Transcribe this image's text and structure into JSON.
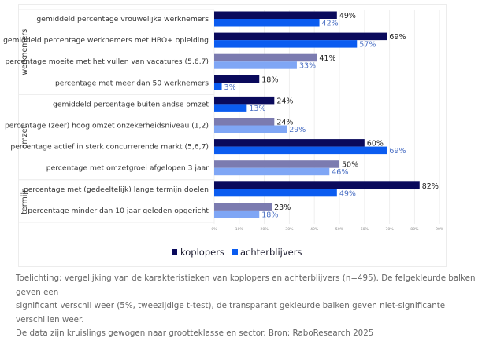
{
  "chart_data": {
    "type": "bar",
    "orientation": "horizontal",
    "title": "",
    "xlabel": "",
    "ylabel": "",
    "xlim": [
      0,
      90
    ],
    "x_ticks": [
      "0%",
      "10%",
      "20%",
      "30%",
      "40%",
      "50%",
      "60%",
      "70%",
      "80%",
      "90%"
    ],
    "grid": true,
    "legend_position": "bottom-center",
    "groups": [
      {
        "name": "werknemers",
        "categories": [
          0,
          1,
          2,
          3
        ]
      },
      {
        "name": "omzet",
        "categories": [
          4,
          5,
          6,
          7
        ]
      },
      {
        "name": "termijn",
        "categories": [
          8,
          9
        ]
      }
    ],
    "categories": [
      "gemiddeld percentage vrouwelijke werknemers",
      "gemiddeld percentage werknemers met HBO+ opleiding",
      "percentage moeite met het vullen van vacatures (5,6,7)",
      "percentage met meer dan 50 werknemers",
      "gemiddeld percentage buitenlandse omzet",
      "percentage (zeer) hoog omzet onzekerheidsniveau (1,2)",
      "percentage actief in sterk concurrerende markt (5,6,7)",
      "percentage met omzetgroei afgelopen 3 jaar",
      "percentage met (gedeeltelijk) lange termijn doelen",
      "percentage minder dan 10 jaar geleden opgericht"
    ],
    "significant": [
      true,
      true,
      false,
      true,
      true,
      false,
      true,
      false,
      true,
      false
    ],
    "series": [
      {
        "name": "koplopers",
        "color": "#0a0a5c",
        "color_nonsignificant": "#7b7bb0",
        "values": [
          49,
          69,
          41,
          18,
          24,
          24,
          60,
          50,
          82,
          23
        ]
      },
      {
        "name": "achterblijvers",
        "color": "#0b5cf0",
        "color_nonsignificant": "#7fa6f5",
        "values": [
          42,
          57,
          33,
          3,
          13,
          29,
          69,
          46,
          49,
          18
        ]
      }
    ],
    "value_suffix": "%"
  },
  "legend": {
    "koplopers": "koplopers",
    "achterblijvers": "achterblijvers"
  },
  "caption": {
    "lines": [
      "Toelichting: vergelijking van de karakteristieken van koplopers en achterblijvers (n=495). De felgekleurde balken geven een",
      "significant verschil weer (5%, tweezijdige t-test), de transparant gekleurde balken geven niet-significante verschillen weer.",
      "De data zijn kruislings gewogen naar grootteklasse en sector. Bron: RaboResearch 2025"
    ]
  }
}
